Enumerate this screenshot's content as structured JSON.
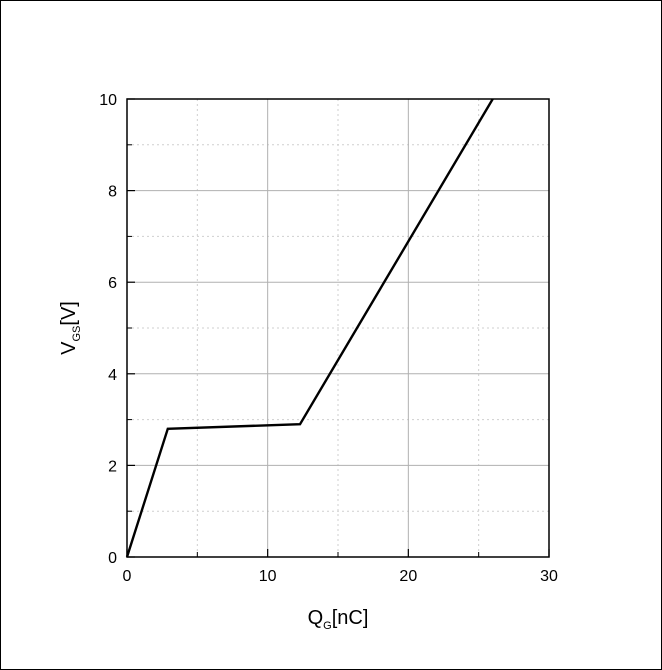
{
  "chart_data": {
    "type": "line",
    "title": "",
    "xlabel": {
      "main": "Q",
      "sub": "G",
      "unit": "[nC]"
    },
    "ylabel": {
      "main": "V",
      "sub": "GS",
      "unit": "[V]"
    },
    "xlim": [
      0,
      30
    ],
    "ylim": [
      0,
      10
    ],
    "xticks": [
      0,
      10,
      20,
      30
    ],
    "yticks": [
      0,
      2,
      4,
      6,
      8,
      10
    ],
    "grid": true,
    "legend": "none",
    "series": [
      {
        "x": [
          0,
          2.9,
          12.3,
          26.0
        ],
        "y": [
          0,
          2.8,
          2.9,
          10.0
        ]
      }
    ],
    "colors": {
      "line": "#000000",
      "grid_major": "#b0b0b0",
      "grid_minor": "#cfcfcf"
    }
  }
}
